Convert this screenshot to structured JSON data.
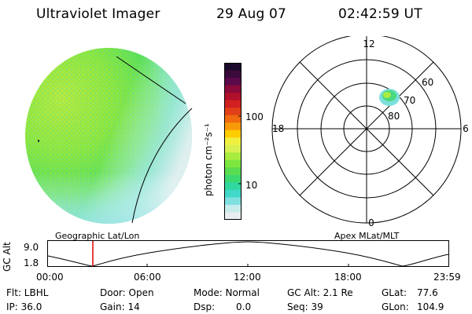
{
  "header": {
    "instrument": "Ultraviolet Imager",
    "date": "29 Aug 07",
    "time": "02:42:59 UT"
  },
  "colorbar": {
    "label": "photon cm⁻²s⁻¹",
    "ticks": [
      "100",
      "10"
    ],
    "colors": [
      "#1a0a2a",
      "#3a0a3a",
      "#5a0a4a",
      "#8a0a3a",
      "#b0102a",
      "#d02020",
      "#e04018",
      "#f06a10",
      "#f89a08",
      "#ffcc00",
      "#f0f040",
      "#d8f050",
      "#a8ec40",
      "#7ee640",
      "#5adc50",
      "#3cd870",
      "#30d8a0",
      "#40d8c8",
      "#80e0e0",
      "#c8ecec",
      "#e8eef0"
    ]
  },
  "polar": {
    "mlt_labels": {
      "top": "12",
      "left": "18",
      "right": "6",
      "bottom": "0"
    },
    "lat_labels": [
      "60",
      "70",
      "80"
    ]
  },
  "timeline": {
    "axis_label": "GC Alt",
    "y_ticks": [
      "9.0",
      "1.8"
    ],
    "left_label": "Geographic Lat/Lon",
    "right_label": "Apex MLat/MLT",
    "x_ticks": [
      "00:00",
      "06:00",
      "12:00",
      "18:00",
      "23:59"
    ],
    "marker_time": "02:42:59"
  },
  "info": {
    "filter": "Flt: LBHL",
    "ip": "IP: 36.0",
    "door": "Door: Open",
    "gain": "Gain: 14",
    "mode": "Mode: Normal",
    "dsp": "Dsp:",
    "dsp_value": "0.0",
    "gc_alt": "GC Alt: 2.1 Re",
    "seq": "Seq: 39",
    "glat": "GLat:",
    "glat_value": "77.6",
    "glon": "GLon:",
    "glon_value": "104.9"
  }
}
